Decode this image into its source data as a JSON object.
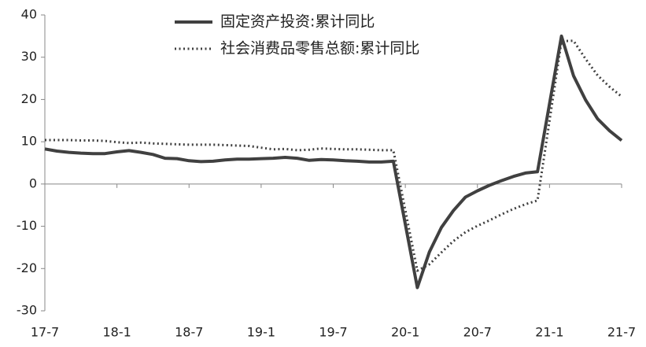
{
  "chart_data": {
    "type": "line",
    "categories": [
      "17-7",
      null,
      null,
      null,
      null,
      null,
      "18-1",
      null,
      null,
      null,
      null,
      null,
      "18-7",
      null,
      null,
      null,
      null,
      null,
      "19-1",
      null,
      null,
      null,
      null,
      null,
      "19-7",
      null,
      null,
      null,
      null,
      null,
      "20-1",
      null,
      null,
      null,
      null,
      null,
      "20-7",
      null,
      null,
      null,
      null,
      null,
      "21-1",
      null,
      null,
      null,
      null,
      null,
      "21-7"
    ],
    "series": [
      {
        "name": "固定资产投资:累计同比",
        "color": "#404040",
        "style": "solid",
        "values": [
          8.3,
          7.8,
          7.5,
          7.3,
          7.2,
          7.2,
          7.6,
          7.9,
          7.5,
          7.0,
          6.1,
          6.0,
          5.5,
          5.3,
          5.4,
          5.7,
          5.9,
          5.9,
          6.0,
          6.1,
          6.3,
          6.1,
          5.6,
          5.8,
          5.7,
          5.5,
          5.4,
          5.2,
          5.2,
          5.4,
          -9.5,
          -24.5,
          -16.1,
          -10.3,
          -6.3,
          -3.1,
          -1.6,
          -0.3,
          0.8,
          1.8,
          2.6,
          2.9,
          19.0,
          35.0,
          25.6,
          19.9,
          15.4,
          12.6,
          10.3
        ]
      },
      {
        "name": "社会消费品零售总额:累计同比",
        "color": "#404040",
        "style": "dotted",
        "values": [
          10.4,
          10.4,
          10.4,
          10.3,
          10.3,
          10.2,
          9.9,
          9.7,
          9.8,
          9.6,
          9.5,
          9.4,
          9.3,
          9.3,
          9.3,
          9.2,
          9.1,
          9.0,
          8.6,
          8.2,
          8.3,
          8.0,
          8.1,
          8.4,
          8.3,
          8.2,
          8.2,
          8.1,
          8.0,
          8.0,
          -6.2,
          -20.5,
          -19.0,
          -16.2,
          -13.5,
          -11.4,
          -9.9,
          -8.6,
          -7.2,
          -5.9,
          -4.8,
          -3.9,
          15.0,
          33.8,
          33.9,
          29.6,
          25.7,
          23.0,
          20.7
        ]
      }
    ],
    "ylim": [
      -30,
      40
    ],
    "yticks": [
      -30,
      -20,
      -10,
      0,
      10,
      20,
      30,
      40
    ],
    "grid": false,
    "legend": "top"
  }
}
